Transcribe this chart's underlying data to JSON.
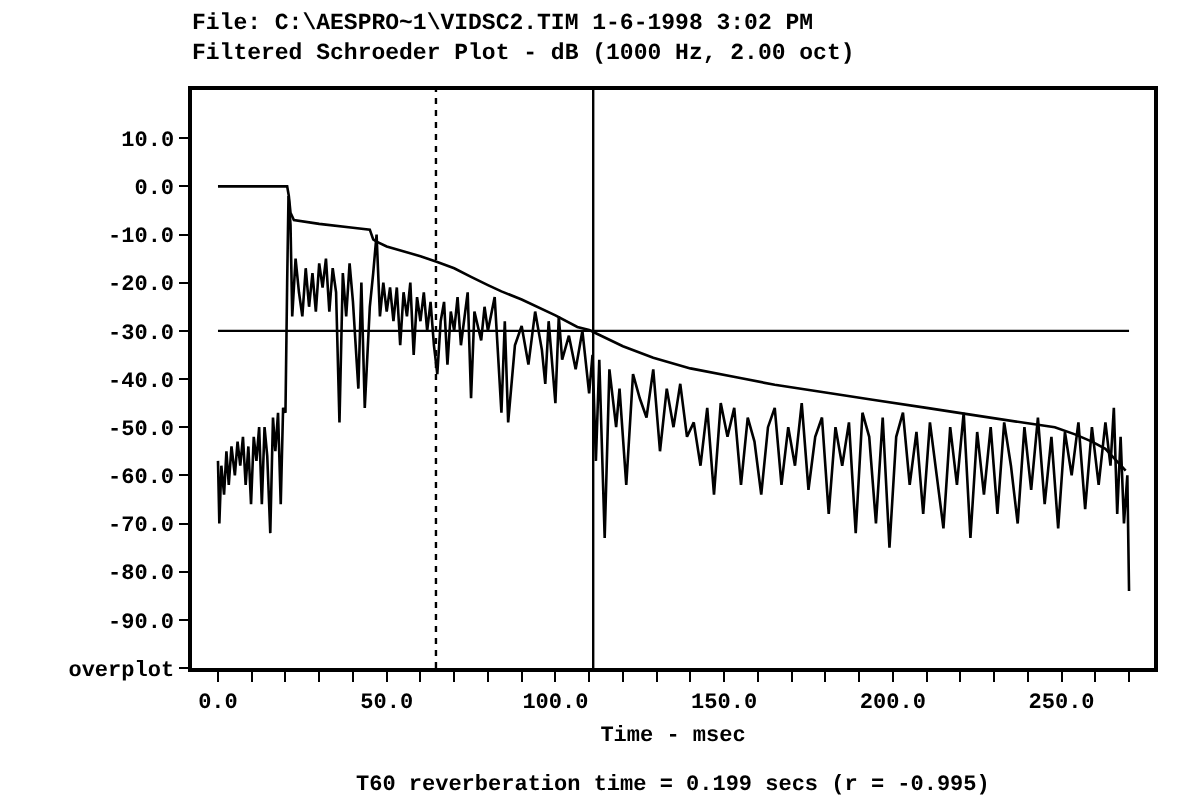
{
  "chart_data": {
    "type": "line",
    "title": "File: C:\\AESPRO~1\\VIDSC2.TIM 1-6-1998 3:02 PM",
    "subtitle": "Filtered Schroeder Plot - dB (1000 Hz, 2.00 oct)",
    "xlabel": "Time - msec",
    "annotations": [
      "T60 reverberation time = 0.199 secs (r = -0.995)"
    ],
    "xlim": [
      -7.7,
      277.4
    ],
    "ylim": [
      -100,
      20
    ],
    "xticks": [
      {
        "value": 0,
        "label": "0.0"
      },
      {
        "value": 10,
        "label": null
      },
      {
        "value": 20,
        "label": null
      },
      {
        "value": 30,
        "label": null
      },
      {
        "value": 40,
        "label": null
      },
      {
        "value": 50,
        "label": "50.0"
      },
      {
        "value": 60,
        "label": null
      },
      {
        "value": 70,
        "label": null
      },
      {
        "value": 80,
        "label": null
      },
      {
        "value": 90,
        "label": null
      },
      {
        "value": 100,
        "label": "100.0"
      },
      {
        "value": 110,
        "label": null
      },
      {
        "value": 120,
        "label": null
      },
      {
        "value": 130,
        "label": null
      },
      {
        "value": 140,
        "label": null
      },
      {
        "value": 150,
        "label": "150.0"
      },
      {
        "value": 160,
        "label": null
      },
      {
        "value": 170,
        "label": null
      },
      {
        "value": 180,
        "label": null
      },
      {
        "value": 190,
        "label": null
      },
      {
        "value": 200,
        "label": "200.0"
      },
      {
        "value": 210,
        "label": null
      },
      {
        "value": 220,
        "label": null
      },
      {
        "value": 230,
        "label": null
      },
      {
        "value": 240,
        "label": null
      },
      {
        "value": 250,
        "label": "250.0"
      },
      {
        "value": 260,
        "label": null
      },
      {
        "value": 270,
        "label": null
      }
    ],
    "yticks": [
      {
        "value": 10,
        "label": "10.0"
      },
      {
        "value": 0,
        "label": "0.0"
      },
      {
        "value": -10,
        "label": "-10.0"
      },
      {
        "value": -20,
        "label": "-20.0"
      },
      {
        "value": -30,
        "label": "-30.0"
      },
      {
        "value": -40,
        "label": "-40.0"
      },
      {
        "value": -50,
        "label": "-50.0"
      },
      {
        "value": -60,
        "label": "-60.0"
      },
      {
        "value": -70,
        "label": "-70.0"
      },
      {
        "value": -80,
        "label": "-80.0"
      },
      {
        "value": -90,
        "label": "-90.0"
      },
      {
        "value": -100,
        "label": "overplot"
      }
    ],
    "marker": "none",
    "line_style": "solid",
    "ref_lines": [
      {
        "axis": "x",
        "value": 64.6,
        "label": null,
        "color": "#000000",
        "line_style": "dotted"
      },
      {
        "axis": "x",
        "value": 111.2,
        "label": null,
        "color": "#000000",
        "line_style": "solid"
      },
      {
        "axis": "y",
        "value": -30,
        "label": null,
        "color": "#000000",
        "line_style": "solid"
      }
    ],
    "series": [
      {
        "color": "#000000",
        "x": [
          0,
          0.4,
          1,
          1.8,
          2.5,
          3.2,
          4,
          5,
          5.8,
          6.6,
          7.4,
          8.2,
          9,
          9.8,
          10.6,
          11.4,
          12.2,
          13,
          13.8,
          14.6,
          15.5,
          16.3,
          17,
          17.8,
          18.6,
          19.3,
          20,
          20.5,
          20.9,
          21.5,
          22,
          23,
          24,
          25,
          26,
          27,
          28,
          29,
          30,
          31,
          32,
          33,
          34,
          35,
          36,
          37,
          38,
          39,
          40,
          41.6,
          42.5,
          43.5,
          45,
          46,
          47,
          48,
          49,
          50,
          51,
          52,
          53,
          54,
          55,
          56,
          57,
          58,
          59,
          60,
          61,
          62,
          63,
          64,
          65,
          66,
          67,
          68,
          69,
          70,
          71,
          72,
          74,
          75,
          76,
          78,
          79,
          80,
          82,
          84,
          85,
          86,
          88,
          90,
          92,
          94,
          96,
          97,
          98,
          100,
          101,
          102,
          104,
          106,
          108,
          110,
          111,
          112,
          113,
          114.6,
          116,
          118,
          119,
          121,
          123,
          125,
          127,
          129,
          131,
          133,
          135,
          137,
          139,
          141,
          143,
          145,
          147,
          149,
          151,
          153,
          155,
          157,
          159,
          161,
          163,
          165,
          167,
          169,
          171,
          173,
          175,
          177,
          179,
          181,
          183,
          185,
          187,
          189,
          191,
          193,
          195,
          197,
          199,
          201,
          203,
          205,
          207,
          209,
          211,
          213,
          215,
          217,
          219,
          221,
          223,
          225,
          227,
          229,
          231,
          233,
          235,
          237,
          239,
          241,
          243,
          245,
          247,
          249,
          251,
          253,
          255,
          257,
          259,
          261,
          263,
          264.5,
          265.5,
          266.5,
          267.5,
          268.5,
          269.5,
          270
        ],
        "values": [
          -57,
          -70,
          -58,
          -64,
          -55,
          -62,
          -54,
          -60,
          -53,
          -58,
          -52,
          -62,
          -54,
          -66,
          -52,
          -57,
          -50,
          -66,
          -50,
          -56,
          -72,
          -48,
          -55,
          -47,
          -66,
          -46,
          -47,
          -20,
          -2,
          -8,
          -27,
          -15,
          -22,
          -27,
          -17,
          -25,
          -18,
          -26,
          -16,
          -21,
          -15,
          -26,
          -17,
          -22,
          -49,
          -18,
          -27,
          -16,
          -24,
          -42,
          -20,
          -46,
          -25,
          -18,
          -10,
          -27,
          -20,
          -26,
          -21,
          -28,
          -21,
          -33,
          -22,
          -27,
          -20,
          -35,
          -23,
          -28,
          -22,
          -30,
          -24,
          -33,
          -39,
          -28,
          -24,
          -37,
          -26,
          -30,
          -23,
          -33,
          -22,
          -44,
          -26,
          -32,
          -25,
          -30,
          -23,
          -47,
          -28,
          -49,
          -33,
          -29,
          -37,
          -26,
          -34,
          -41,
          -28,
          -45,
          -27,
          -36,
          -31,
          -38,
          -30,
          -43,
          -35,
          -57,
          -36,
          -73,
          -38,
          -50,
          -42,
          -62,
          -39,
          -44,
          -48,
          -38,
          -55,
          -42,
          -50,
          -41,
          -52,
          -49,
          -58,
          -46,
          -64,
          -45,
          -52,
          -46,
          -62,
          -48,
          -53,
          -64,
          -50,
          -46,
          -62,
          -50,
          -58,
          -45,
          -63,
          -52,
          -48,
          -68,
          -50,
          -58,
          -49,
          -72,
          -47,
          -52,
          -70,
          -48,
          -75,
          -52,
          -47,
          -62,
          -51,
          -68,
          -49,
          -60,
          -71,
          -50,
          -62,
          -47,
          -73,
          -51,
          -64,
          -50,
          -68,
          -49,
          -58,
          -70,
          -50,
          -63,
          -48,
          -66,
          -52,
          -71,
          -51,
          -60,
          -49,
          -67,
          -50,
          -62,
          -49,
          -58,
          -46,
          -68,
          -52,
          -70,
          -60,
          -84
        ]
      },
      {
        "color": "#000000",
        "x": [
          0,
          20.5,
          21,
          21.5,
          22.5,
          30,
          40,
          45,
          46,
          47,
          50,
          60,
          65,
          70,
          75,
          80,
          84,
          90,
          100,
          106.5,
          110,
          112,
          120,
          129,
          140,
          154,
          165,
          181,
          194,
          210,
          223,
          240,
          248,
          254,
          259,
          263,
          265,
          267,
          269
        ],
        "values": [
          0,
          0,
          -2,
          -5.5,
          -7,
          -7.8,
          -8.6,
          -9,
          -11,
          -11.5,
          -12.5,
          -14.5,
          -15.7,
          -17,
          -18.8,
          -20.5,
          -21.8,
          -23.5,
          -26.8,
          -29.2,
          -29.8,
          -30.5,
          -33.2,
          -35.6,
          -37.8,
          -39.7,
          -41.2,
          -42.9,
          -44.3,
          -46,
          -47.4,
          -49.2,
          -50,
          -51.5,
          -53,
          -54.5,
          -56,
          -57.5,
          -59
        ]
      }
    ]
  }
}
